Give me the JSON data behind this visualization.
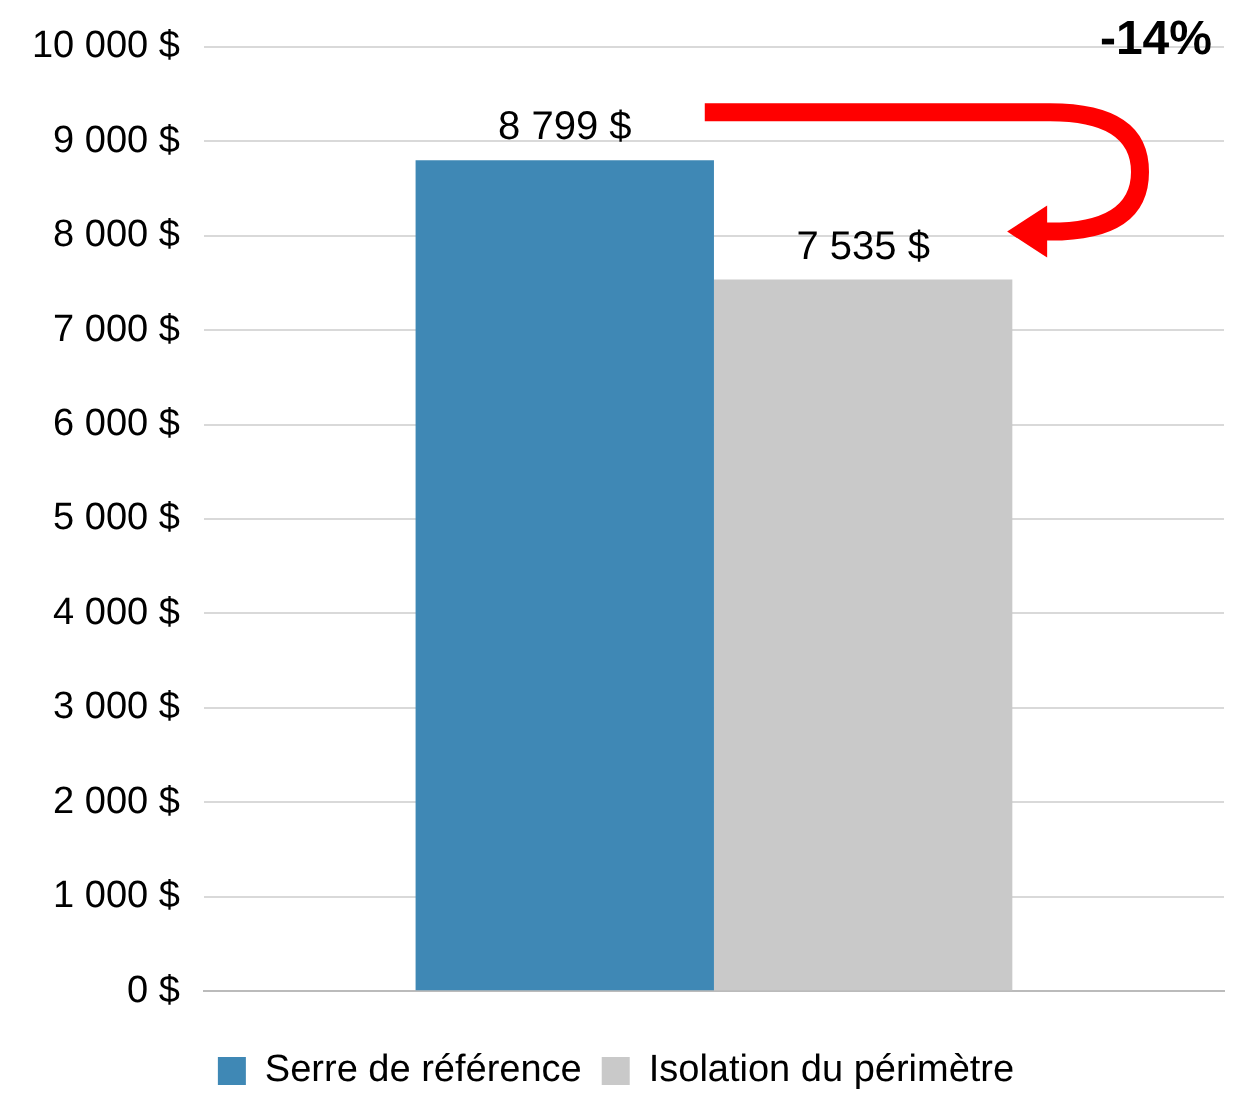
{
  "chart_data": {
    "type": "bar",
    "categories": [
      null
    ],
    "series": [
      {
        "name": "Serre de référence",
        "color": "#3f88b5",
        "values": [
          8799
        ],
        "value_labels": [
          "8 799 $"
        ]
      },
      {
        "name": "Isolation du périmètre",
        "color": "#c9c9c9",
        "values": [
          7535
        ],
        "value_labels": [
          "7 535 $"
        ]
      }
    ],
    "ylim": [
      0,
      10000
    ],
    "yticks": [
      {
        "value": 0,
        "label": "0 $"
      },
      {
        "value": 1000,
        "label": "1 000 $"
      },
      {
        "value": 2000,
        "label": "2 000 $"
      },
      {
        "value": 3000,
        "label": "3 000 $"
      },
      {
        "value": 4000,
        "label": "4 000 $"
      },
      {
        "value": 5000,
        "label": "5 000 $"
      },
      {
        "value": 6000,
        "label": "6 000 $"
      },
      {
        "value": 7000,
        "label": "7 000 $"
      },
      {
        "value": 8000,
        "label": "8 000 $"
      },
      {
        "value": 9000,
        "label": "9 000 $"
      },
      {
        "value": 10000,
        "label": "10 000 $"
      }
    ],
    "grid": "y",
    "legend": "bottom",
    "annotations": [
      "-14%"
    ]
  }
}
